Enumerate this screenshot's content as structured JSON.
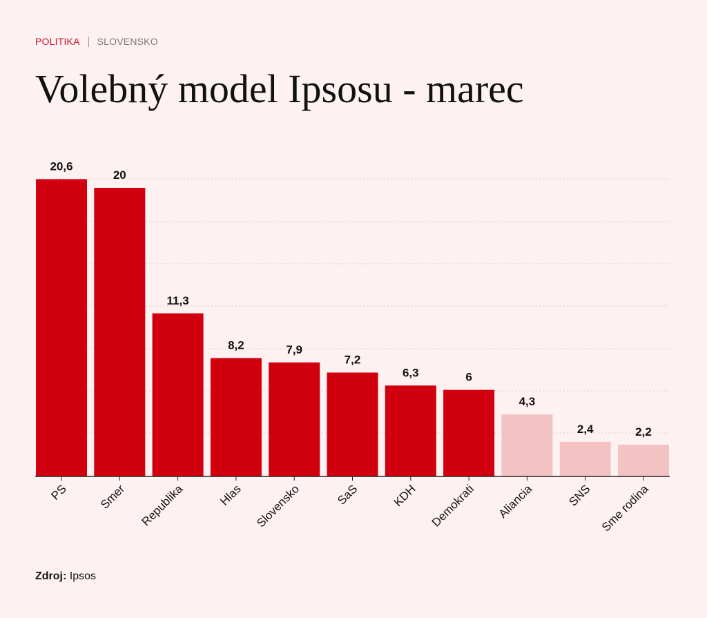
{
  "header": {
    "category": "POLITIKA",
    "subcategory": "SLOVENSKO"
  },
  "title": "Volebný model Ipsosu - marec",
  "footer": {
    "source_label": "Zdroj:",
    "source_value": "Ipsos"
  },
  "colors": {
    "primary_bar": "#d0000f",
    "faded_bar": "#f3c3c4",
    "background": "#fdf1f1"
  },
  "chart_data": {
    "type": "bar",
    "categories": [
      "PS",
      "Smer",
      "Republika",
      "Hlas",
      "Slovensko",
      "SaS",
      "KDH",
      "Demokrati",
      "Aliancia",
      "SNS",
      "Sme rodina"
    ],
    "values": [
      20.6,
      20,
      11.3,
      8.2,
      7.9,
      7.2,
      6.3,
      6,
      4.3,
      2.4,
      2.2
    ],
    "value_labels": [
      "20,6",
      "20",
      "11,3",
      "8,2",
      "7,9",
      "7,2",
      "6,3",
      "6",
      "4,3",
      "2,4",
      "2,2"
    ],
    "highlight": [
      true,
      true,
      true,
      true,
      true,
      true,
      true,
      true,
      false,
      false,
      false
    ],
    "ylim": [
      0,
      21
    ],
    "grid": true,
    "title": "",
    "xlabel": "",
    "ylabel": ""
  }
}
